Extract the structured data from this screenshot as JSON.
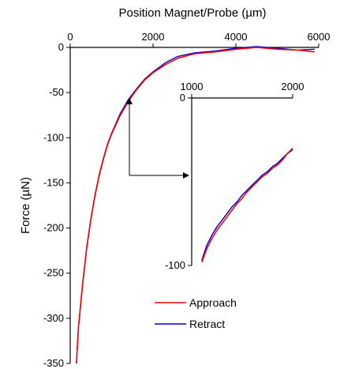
{
  "chart_data": {
    "type": "line",
    "title": "",
    "xlabel": "Position Magnet/Probe (µm)",
    "ylabel": "Force (µN)",
    "xlim": [
      0,
      6000
    ],
    "ylim": [
      -350,
      0
    ],
    "x_ticks": [
      0,
      2000,
      4000,
      6000
    ],
    "y_ticks": [
      0,
      -50,
      -100,
      -150,
      -200,
      -250,
      -300,
      -350
    ],
    "x_tick_labels": [
      "0",
      "2000",
      "4000",
      "6000"
    ],
    "y_tick_labels": [
      "0",
      "-50",
      "-100",
      "-150",
      "-200",
      "-250",
      "-300",
      "-350"
    ],
    "legend_position": "bottom-right",
    "series": [
      {
        "name": "Approach",
        "color": "#ff0000",
        "x": [
          150,
          200,
          300,
          400,
          500,
          600,
          700,
          800,
          900,
          1000,
          1200,
          1400,
          1600,
          1800,
          2000,
          2300,
          2600,
          3000,
          3500,
          4000,
          4500,
          5000,
          5500,
          5900
        ],
        "y": [
          -350,
          -310,
          -262,
          -222,
          -190,
          -164,
          -142,
          -124,
          -108,
          -96,
          -76,
          -60,
          -47,
          -36,
          -28,
          -19,
          -12,
          -7,
          -5,
          -2,
          0,
          -2,
          -3,
          -5
        ]
      },
      {
        "name": "Retract",
        "color": "#0000cc",
        "x": [
          150,
          200,
          300,
          400,
          500,
          600,
          700,
          800,
          900,
          1000,
          1200,
          1400,
          1600,
          1800,
          2000,
          2300,
          2600,
          3000,
          3500,
          4000,
          4500,
          5000,
          5500,
          5900
        ],
        "y": [
          -350,
          -309,
          -261,
          -221,
          -189,
          -163,
          -141,
          -123,
          -107,
          -95,
          -74,
          -58,
          -46,
          -35,
          -27,
          -17,
          -10,
          -6,
          -4,
          -1,
          1,
          -1,
          -3,
          -2
        ]
      }
    ],
    "inset": {
      "type": "line",
      "xlim": [
        1000,
        2000
      ],
      "ylim": [
        -100,
        0
      ],
      "x_ticks": [
        1000,
        2000
      ],
      "x_tick_labels": [
        "1000",
        "2000"
      ],
      "y_ticks": [
        0,
        -100
      ],
      "y_tick_labels": [
        "0",
        "-100"
      ],
      "series": [
        {
          "name": "Approach",
          "color": "#ff0000",
          "x": [
            1100,
            1150,
            1200,
            1250,
            1300,
            1350,
            1400,
            1450,
            1500,
            1550,
            1600,
            1650,
            1700,
            1750,
            1800,
            1850,
            1900,
            1950,
            2000
          ],
          "y": [
            -98,
            -90,
            -84,
            -79,
            -75,
            -71,
            -67,
            -63,
            -60,
            -56,
            -53,
            -50,
            -47,
            -45,
            -42,
            -40,
            -37,
            -33,
            -30
          ]
        },
        {
          "name": "Retract",
          "color": "#0000cc",
          "x": [
            1100,
            1150,
            1200,
            1250,
            1300,
            1350,
            1400,
            1450,
            1500,
            1550,
            1600,
            1650,
            1700,
            1750,
            1800,
            1850,
            1900,
            1950,
            2000
          ],
          "y": [
            -97,
            -88,
            -82,
            -77,
            -73,
            -69,
            -65,
            -62,
            -58,
            -55,
            -52,
            -49,
            -46,
            -44,
            -41,
            -39,
            -36,
            -33,
            -31
          ]
        }
      ]
    }
  }
}
